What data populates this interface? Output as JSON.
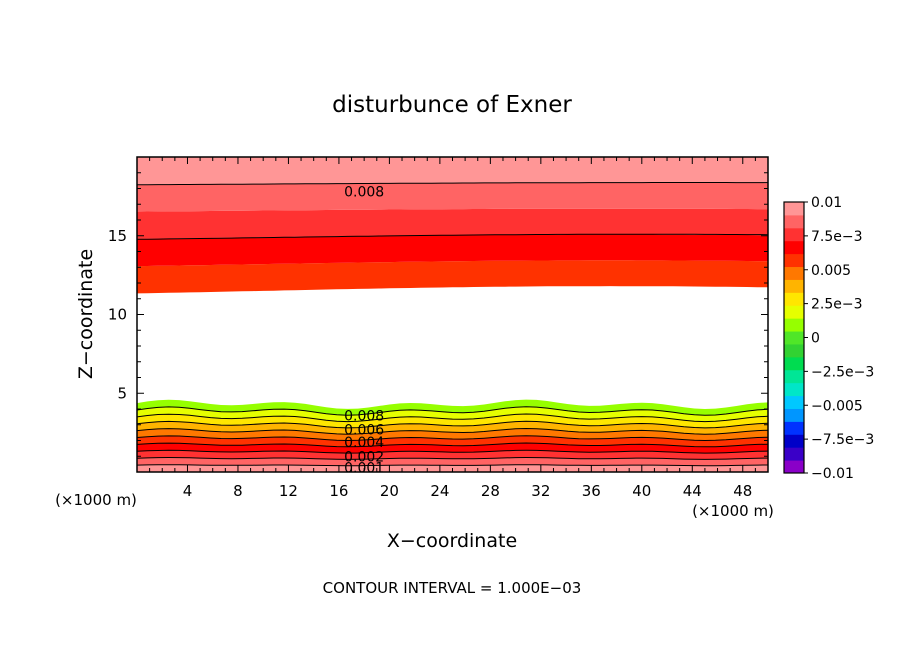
{
  "chart_data": {
    "type": "heatmap",
    "title": "disturbunce of Exner",
    "xlabel": "X−coordinate",
    "ylabel": "Z−coordinate",
    "x_unit_left": "(×1000 m)",
    "x_unit_right": "(×1000 m)",
    "xlim": [
      0,
      50
    ],
    "ylim": [
      0,
      20
    ],
    "x_ticks": [
      4,
      8,
      12,
      16,
      20,
      24,
      28,
      32,
      36,
      40,
      44,
      48
    ],
    "x_tick_labels": [
      "4",
      "8",
      "12",
      "16",
      "20",
      "24",
      "28",
      "32",
      "36",
      "40",
      "44",
      "48"
    ],
    "y_ticks": [
      5,
      10,
      15
    ],
    "y_tick_labels": [
      "5",
      "10",
      "15"
    ],
    "grid": false,
    "footer": "CONTOUR INTERVAL = 1.000E−03",
    "contour_interval": 0.001,
    "lower_layer": {
      "z_top_min": 4.0,
      "z_top_max": 4.6,
      "levels": [
        0.001,
        0.002,
        0.003,
        0.004,
        0.005,
        0.006,
        0.007,
        0.008,
        0.009,
        0.01
      ]
    },
    "upper_layer": {
      "z_bottom_min": 11.2,
      "z_bottom_max": 11.8,
      "levels": [
        0.006,
        0.007,
        0.008,
        0.009,
        0.01
      ]
    },
    "contour_labels": [
      {
        "text": "0.008",
        "x": 18.0,
        "z": 17.8
      },
      {
        "text": "0.008",
        "x": 18.0,
        "z": 3.6
      },
      {
        "text": "0.006",
        "x": 18.0,
        "z": 2.7
      },
      {
        "text": "0.004",
        "x": 18.0,
        "z": 1.9
      },
      {
        "text": "0.002",
        "x": 18.0,
        "z": 1.0
      },
      {
        "text": "0.001",
        "x": 18.0,
        "z": 0.3
      }
    ],
    "colorbar": {
      "placement": "right",
      "min": -0.01,
      "max": 0.01,
      "colors": [
        "#8a00c8",
        "#3a00c8",
        "#0000c8",
        "#0032ff",
        "#0096ff",
        "#00c8ff",
        "#00e6c8",
        "#00e696",
        "#00dc50",
        "#32d232",
        "#50e628",
        "#96ff00",
        "#e6ff00",
        "#ffe600",
        "#ffb400",
        "#ff7800",
        "#ff3200",
        "#ff0000",
        "#ff3232",
        "#ff6464",
        "#ff9696"
      ],
      "tick_labels": [
        "0.01",
        "7.5e−3",
        "0.005",
        "2.5e−3",
        "0",
        "−2.5e−3",
        "−0.005",
        "−7.5e−3",
        "−0.01"
      ]
    }
  }
}
